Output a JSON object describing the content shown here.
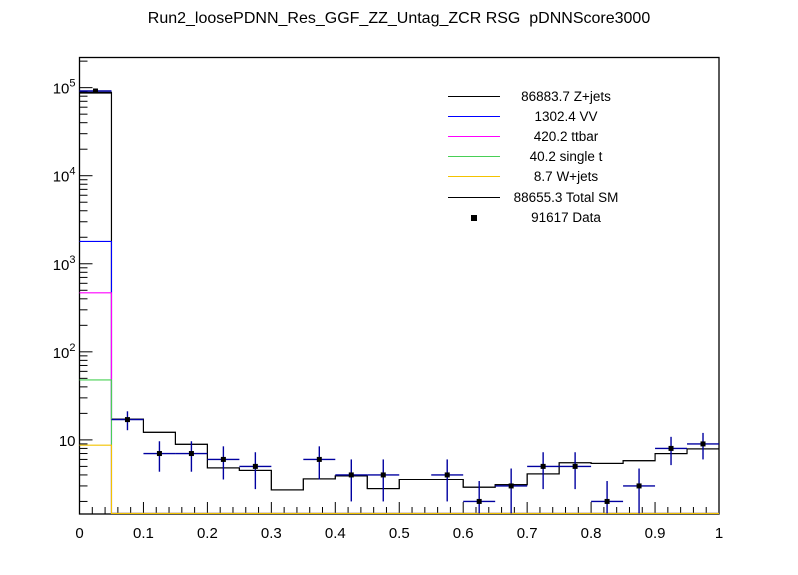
{
  "title": "Run2_loosePDNN_Res_GGF_ZZ_Untag_ZCR RSG  pDNNScore3000",
  "background_color": "#ffffff",
  "chart_data": {
    "type": "line",
    "subtype": "ROOT-style step histogram overlay, log y-axis, with data points",
    "title": "Run2_loosePDNN_Res_GGF_ZZ_Untag_ZCR RSG  pDNNScore3000",
    "xlabel": "",
    "ylabel": "",
    "xlim": [
      0,
      1
    ],
    "ylim": [
      1.44,
      220000
    ],
    "y_scale": "log",
    "grid": false,
    "bin_width": 0.05,
    "n_bins": 20,
    "x_tick_labels": [
      "0",
      "0.1",
      "0.2",
      "0.3",
      "0.4",
      "0.5",
      "0.6",
      "0.7",
      "0.8",
      "0.9",
      "1"
    ],
    "x_minor_tick_step": 0.02,
    "y_tick_labels": [
      {
        "value": 10,
        "base": "10",
        "exponent": ""
      },
      {
        "value": 100,
        "base": "10",
        "exponent": "2"
      },
      {
        "value": 1000,
        "base": "10",
        "exponent": "3"
      },
      {
        "value": 10000,
        "base": "10",
        "exponent": "4"
      },
      {
        "value": 100000,
        "base": "10",
        "exponent": "5"
      }
    ],
    "values_are": "displayed stacked step heights per bin, pixel-estimated from plot",
    "series": [
      {
        "name": "Z+jets",
        "legend_value": "86883.7",
        "color": "#000000",
        "values": [
          86884,
          17.2,
          12.2,
          8.9,
          4.8,
          4.5,
          2.7,
          3.6,
          3.9,
          2.8,
          3.55,
          3.55,
          2.9,
          3.1,
          4.1,
          5.5,
          5.4,
          5.8,
          7.0,
          7.9
        ]
      },
      {
        "name": "Total SM",
        "legend_value": "88655.3",
        "color": "#000000",
        "values": [
          88500,
          17.2,
          12.2,
          8.9,
          4.8,
          4.5,
          2.7,
          3.6,
          3.9,
          2.8,
          3.55,
          3.55,
          2.9,
          3.1,
          4.1,
          5.5,
          5.4,
          5.8,
          7.0,
          7.9
        ]
      },
      {
        "name": "VV",
        "legend_value": "1302.4",
        "color": "#0000ff",
        "values": [
          1795,
          0,
          0,
          0,
          0,
          0,
          0,
          0,
          0,
          0,
          0,
          0,
          0,
          0,
          0,
          0,
          0,
          0,
          0,
          0
        ]
      },
      {
        "name": "ttbar",
        "legend_value": "420.2",
        "color": "#ff00ff",
        "values": [
          468,
          0,
          0,
          0,
          0,
          0,
          0,
          0,
          0,
          0,
          0,
          0,
          0,
          0,
          0,
          0,
          0,
          0,
          0,
          0
        ]
      },
      {
        "name": "single t",
        "legend_value": "40.2",
        "color": "#48d155",
        "values": [
          48,
          0,
          0,
          0,
          0,
          0,
          0,
          0,
          0,
          0,
          0,
          0,
          0,
          0,
          0,
          0,
          0,
          0,
          0,
          0
        ]
      },
      {
        "name": "W+jets",
        "legend_value": "8.7",
        "color": "#f3c300",
        "values": [
          8.7,
          0,
          0,
          0,
          0,
          0,
          0,
          0,
          0,
          0,
          0,
          0,
          0,
          0,
          0,
          0,
          0,
          0,
          0,
          0
        ]
      }
    ],
    "data_points_name": "Data",
    "data_points_legend_value": "91617",
    "data_marker": "filled-square",
    "data_marker_color": "#000000",
    "data_error_color": "#0000a0",
    "data_xerr": 0.025,
    "data_points": [
      {
        "x": 0.025,
        "y": 91617,
        "yerr": 302.7
      },
      {
        "x": 0.075,
        "y": 17,
        "yerr": 4.12
      },
      {
        "x": 0.125,
        "y": 7,
        "yerr": 2.65
      },
      {
        "x": 0.175,
        "y": 7,
        "yerr": 2.65
      },
      {
        "x": 0.225,
        "y": 6,
        "yerr": 2.45
      },
      {
        "x": 0.275,
        "y": 5,
        "yerr": 2.24
      },
      {
        "x": 0.375,
        "y": 6,
        "yerr": 2.45
      },
      {
        "x": 0.425,
        "y": 4,
        "yerr": 2.0
      },
      {
        "x": 0.475,
        "y": 4,
        "yerr": 2.0
      },
      {
        "x": 0.575,
        "y": 4,
        "yerr": 2.0
      },
      {
        "x": 0.625,
        "y": 2,
        "yerr": 1.41
      },
      {
        "x": 0.675,
        "y": 3,
        "yerr": 1.73
      },
      {
        "x": 0.725,
        "y": 5,
        "yerr": 2.24
      },
      {
        "x": 0.775,
        "y": 5,
        "yerr": 2.24
      },
      {
        "x": 0.825,
        "y": 2,
        "yerr": 1.41
      },
      {
        "x": 0.875,
        "y": 3,
        "yerr": 1.73
      },
      {
        "x": 0.925,
        "y": 8,
        "yerr": 2.83
      },
      {
        "x": 0.975,
        "y": 9,
        "yerr": 3.0
      }
    ],
    "legend": {
      "position": "top-right-inside",
      "border": false,
      "entries": [
        {
          "value": "86883.7",
          "label": "Z+jets",
          "color": "#000000",
          "sample": "line"
        },
        {
          "value": "1302.4",
          "label": "VV",
          "color": "#0000ff",
          "sample": "line"
        },
        {
          "value": "420.2",
          "label": "ttbar",
          "color": "#ff00ff",
          "sample": "line"
        },
        {
          "value": "40.2",
          "label": "single t",
          "color": "#48d155",
          "sample": "line"
        },
        {
          "value": "8.7",
          "label": "W+jets",
          "color": "#f3c300",
          "sample": "line"
        },
        {
          "value": "88655.3",
          "label": "Total SM",
          "color": "#000000",
          "sample": "line"
        },
        {
          "value": "91617",
          "label": "Data",
          "color": "#000000",
          "sample": "marker"
        }
      ]
    }
  }
}
